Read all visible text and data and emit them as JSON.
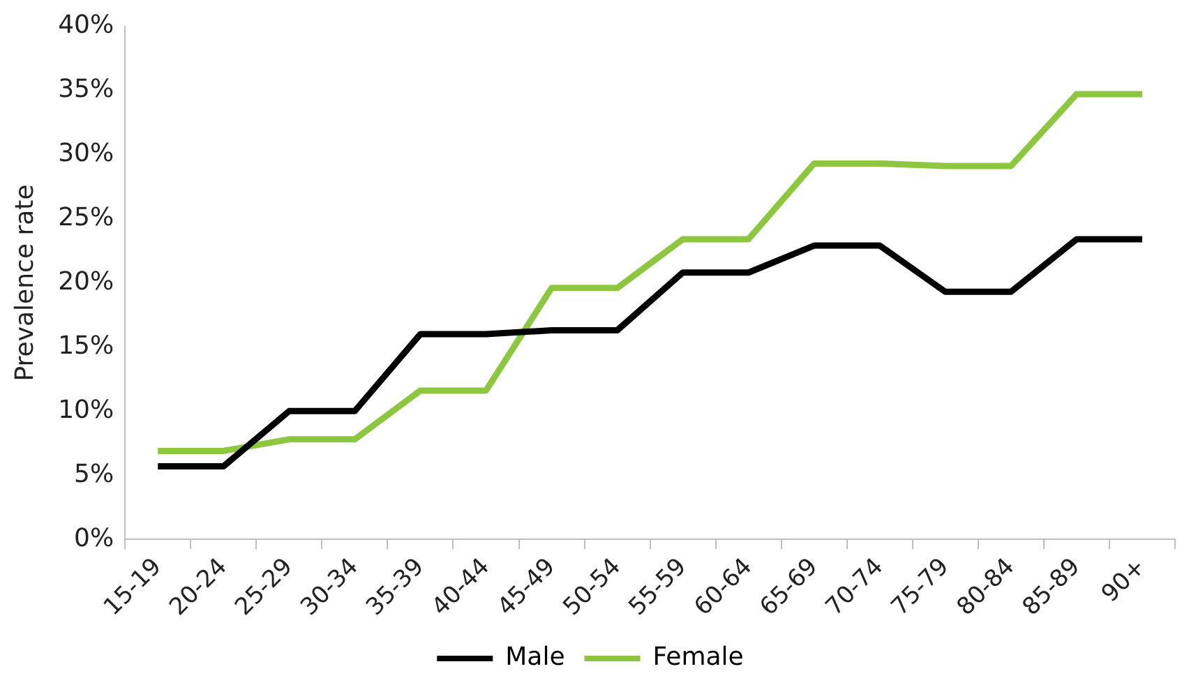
{
  "chart_data": {
    "type": "line",
    "ylabel": "Prevalence rate",
    "categories": [
      "15-19",
      "20-24",
      "25-29",
      "30-34",
      "35-39",
      "40-44",
      "45-49",
      "50-54",
      "55-59",
      "60-64",
      "65-69",
      "70-74",
      "75-79",
      "80-84",
      "85-89",
      "90+"
    ],
    "series": [
      {
        "name": "Male",
        "color": "#000000",
        "values": [
          5.7,
          5.7,
          10.0,
          10.0,
          16.0,
          16.0,
          16.3,
          16.3,
          20.8,
          20.8,
          22.9,
          22.9,
          19.3,
          19.3,
          23.4,
          23.4
        ]
      },
      {
        "name": "Female",
        "color": "#8dc63f",
        "values": [
          6.9,
          6.9,
          7.8,
          7.8,
          11.6,
          11.6,
          19.6,
          19.6,
          23.4,
          23.4,
          29.3,
          29.3,
          29.1,
          29.1,
          34.7,
          34.7
        ]
      }
    ],
    "ylim": [
      0,
      40
    ],
    "yticks": [
      {
        "value": 0,
        "label": "0%"
      },
      {
        "value": 5,
        "label": "5%"
      },
      {
        "value": 10,
        "label": "10%"
      },
      {
        "value": 15,
        "label": "15%"
      },
      {
        "value": 20,
        "label": "20%"
      },
      {
        "value": 25,
        "label": "25%"
      },
      {
        "value": 30,
        "label": "30%"
      },
      {
        "value": 35,
        "label": "35%"
      },
      {
        "value": 40,
        "label": "40%"
      }
    ],
    "grid": false,
    "legend": "bottom",
    "marker": "none",
    "line_style": "solid"
  }
}
